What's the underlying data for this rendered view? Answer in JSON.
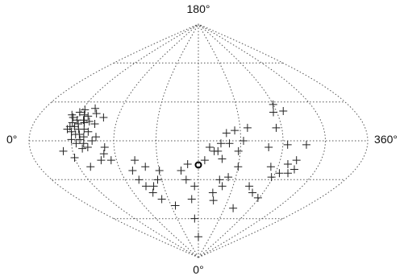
{
  "chart_data": {
    "type": "scatter",
    "projection": "sinusoidal",
    "title": "",
    "xlabel": "",
    "ylabel": "",
    "axis_labels": {
      "top": "180°",
      "bottom": "0°",
      "left": "0°",
      "right": "360°"
    },
    "x_range": [
      0,
      360
    ],
    "y_range": [
      0,
      180
    ],
    "grid": true,
    "meridian_spacing_deg": 45,
    "parallel_spacing_deg": 30,
    "center_marker": {
      "lon": 180,
      "lat": 90
    },
    "points": [
      {
        "lon": 37,
        "lat": 110
      },
      {
        "lon": 40,
        "lat": 108
      },
      {
        "lon": 44,
        "lat": 112
      },
      {
        "lon": 42,
        "lat": 104
      },
      {
        "lon": 46,
        "lat": 101
      },
      {
        "lon": 39,
        "lat": 99
      },
      {
        "lon": 48,
        "lat": 114
      },
      {
        "lon": 51,
        "lat": 110
      },
      {
        "lon": 53,
        "lat": 106
      },
      {
        "lon": 46,
        "lat": 106
      },
      {
        "lon": 49,
        "lat": 103
      },
      {
        "lon": 44,
        "lat": 97
      },
      {
        "lon": 51,
        "lat": 99
      },
      {
        "lon": 55,
        "lat": 104
      },
      {
        "lon": 56,
        "lat": 109
      },
      {
        "lon": 49,
        "lat": 95
      },
      {
        "lon": 53,
        "lat": 95
      },
      {
        "lon": 57,
        "lat": 99
      },
      {
        "lon": 54,
        "lat": 91
      },
      {
        "lon": 58,
        "lat": 93
      },
      {
        "lon": 60,
        "lat": 105
      },
      {
        "lon": 62,
        "lat": 97
      },
      {
        "lon": 59,
        "lat": 115
      },
      {
        "lon": 64,
        "lat": 111
      },
      {
        "lon": 67,
        "lat": 103
      },
      {
        "lon": 58,
        "lat": 88
      },
      {
        "lon": 62,
        "lat": 85
      },
      {
        "lon": 67,
        "lat": 90
      },
      {
        "lon": 71,
        "lat": 93
      },
      {
        "lon": 41,
        "lat": 101
      },
      {
        "lon": 45,
        "lat": 91
      },
      {
        "lon": 50,
        "lat": 88
      },
      {
        "lon": 56,
        "lat": 84
      },
      {
        "lon": 74,
        "lat": 108
      },
      {
        "lon": 35,
        "lat": 82
      },
      {
        "lon": 45,
        "lat": 77
      },
      {
        "lon": 58,
        "lat": 70
      },
      {
        "lon": 80,
        "lat": 85
      },
      {
        "lon": 84,
        "lat": 75
      },
      {
        "lon": 73,
        "lat": 75
      },
      {
        "lon": 78,
        "lat": 80
      },
      {
        "lon": 110,
        "lat": 75
      },
      {
        "lon": 104,
        "lat": 67
      },
      {
        "lon": 107,
        "lat": 60
      },
      {
        "lon": 112,
        "lat": 55
      },
      {
        "lon": 117,
        "lat": 50
      },
      {
        "lon": 122,
        "lat": 55
      },
      {
        "lon": 125,
        "lat": 45
      },
      {
        "lon": 130,
        "lat": 60
      },
      {
        "lon": 135,
        "lat": 67
      },
      {
        "lon": 120,
        "lat": 70
      },
      {
        "lon": 142,
        "lat": 40
      },
      {
        "lon": 160,
        "lat": 67
      },
      {
        "lon": 165,
        "lat": 60
      },
      {
        "lon": 168,
        "lat": 72
      },
      {
        "lon": 170,
        "lat": 45
      },
      {
        "lon": 172,
        "lat": 30
      },
      {
        "lon": 175,
        "lat": 55
      },
      {
        "lon": 180,
        "lat": 16
      },
      {
        "lon": 187,
        "lat": 75
      },
      {
        "lon": 192,
        "lat": 85
      },
      {
        "lon": 197,
        "lat": 82
      },
      {
        "lon": 201,
        "lat": 82
      },
      {
        "lon": 204,
        "lat": 88
      },
      {
        "lon": 206,
        "lat": 76
      },
      {
        "lon": 210,
        "lat": 96
      },
      {
        "lon": 213,
        "lat": 88
      },
      {
        "lon": 219,
        "lat": 98
      },
      {
        "lon": 223,
        "lat": 82
      },
      {
        "lon": 225,
        "lat": 70
      },
      {
        "lon": 206,
        "lat": 60
      },
      {
        "lon": 211,
        "lat": 55
      },
      {
        "lon": 200,
        "lat": 50
      },
      {
        "lon": 203,
        "lat": 44
      },
      {
        "lon": 216,
        "lat": 62
      },
      {
        "lon": 228,
        "lat": 90
      },
      {
        "lon": 233,
        "lat": 100
      },
      {
        "lon": 266,
        "lat": 112
      },
      {
        "lon": 270,
        "lat": 118
      },
      {
        "lon": 264,
        "lat": 100
      },
      {
        "lon": 278,
        "lat": 113
      },
      {
        "lon": 255,
        "lat": 85
      },
      {
        "lon": 275,
        "lat": 87
      },
      {
        "lon": 295,
        "lat": 87
      },
      {
        "lon": 288,
        "lat": 75
      },
      {
        "lon": 262,
        "lat": 70
      },
      {
        "lon": 268,
        "lat": 62
      },
      {
        "lon": 275,
        "lat": 65
      },
      {
        "lon": 280,
        "lat": 72
      },
      {
        "lon": 285,
        "lat": 65
      },
      {
        "lon": 290,
        "lat": 68
      },
      {
        "lon": 246,
        "lat": 55
      },
      {
        "lon": 255,
        "lat": 50
      },
      {
        "lon": 268,
        "lat": 46
      },
      {
        "lon": 240,
        "lat": 38
      }
    ]
  }
}
